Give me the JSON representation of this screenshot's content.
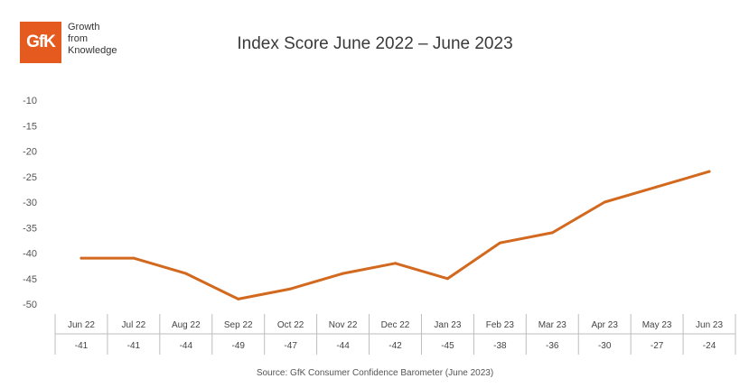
{
  "logo": {
    "brand": "GfK",
    "tagline": [
      "Growth",
      "from",
      "Knowledge"
    ],
    "color": "#e55a1f"
  },
  "chart_data": {
    "type": "line",
    "title": "Index Score June 2022 – June 2023",
    "categories": [
      "Jun 22",
      "Jul 22",
      "Aug 22",
      "Sep 22",
      "Oct 22",
      "Nov 22",
      "Dec 22",
      "Jan 23",
      "Feb 23",
      "Mar 23",
      "Apr 23",
      "May 23",
      "Jun 23"
    ],
    "series": [
      {
        "values": [
          -41,
          -41,
          -44,
          -49,
          -47,
          -44,
          -42,
          -45,
          -38,
          -36,
          -30,
          -27,
          -24
        ],
        "color": "#d2691e"
      }
    ],
    "value_labels": [
      "-41",
      "-41",
      "-44",
      "-49",
      "-47",
      "-44",
      "-42",
      "-45",
      "-38",
      "-36",
      "-30",
      "-27",
      "-24"
    ],
    "yticks": [
      "-10",
      "-15",
      "-20",
      "-25",
      "-30",
      "-35",
      "-40",
      "-45",
      "-50"
    ],
    "ylim": [
      -50,
      -10
    ],
    "grid": false,
    "legend": "none",
    "source": "Source: GfK Consumer Confidence Barometer (June 2023)"
  }
}
